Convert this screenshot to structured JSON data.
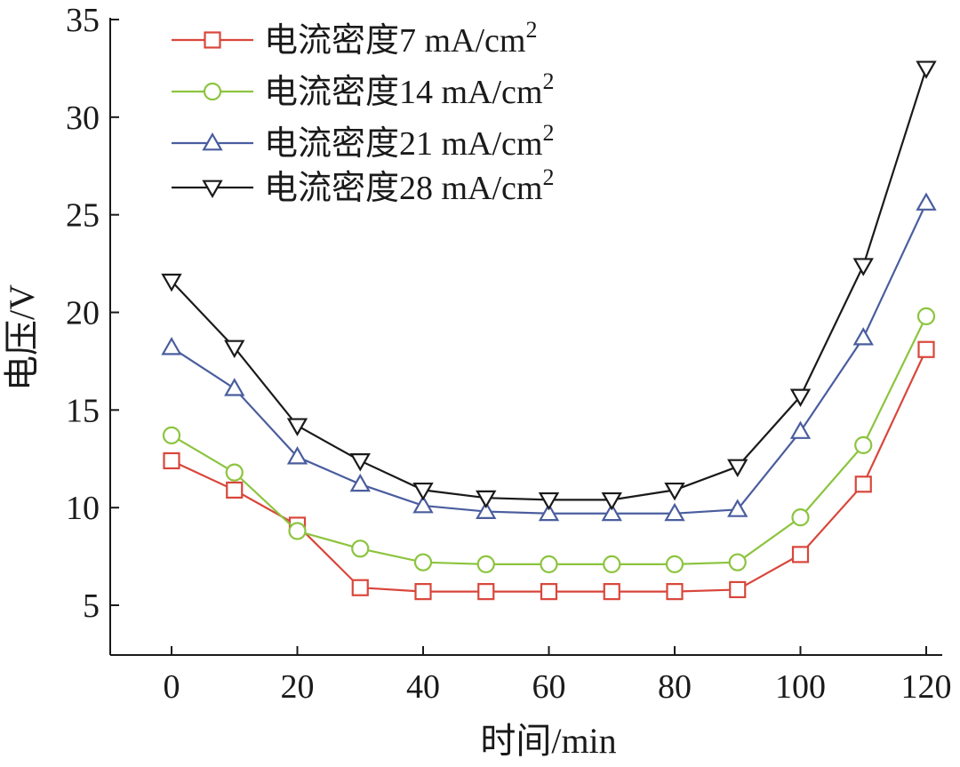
{
  "chart_data": {
    "type": "line",
    "xlabel": "时间/min",
    "ylabel": "电压/V",
    "xlim": [
      -10,
      125
    ],
    "ylim": [
      2.5,
      35
    ],
    "xticks": [
      0,
      20,
      40,
      60,
      80,
      100,
      120
    ],
    "yticks": [
      5,
      10,
      15,
      20,
      25,
      30,
      35
    ],
    "x": [
      0,
      10,
      20,
      30,
      40,
      50,
      60,
      70,
      80,
      90,
      100,
      110,
      120
    ],
    "legend_position": "top-left",
    "grid": false,
    "series": [
      {
        "name": "电流密度7 mA/cm",
        "name_sup": "2",
        "color": "#d9463b",
        "marker": "square",
        "values": [
          12.4,
          10.9,
          9.1,
          5.9,
          5.7,
          5.7,
          5.7,
          5.7,
          5.7,
          5.8,
          7.6,
          11.2,
          18.1
        ]
      },
      {
        "name": "电流密度14 mA/cm",
        "name_sup": "2",
        "color": "#8cc43f",
        "marker": "circle",
        "values": [
          13.7,
          11.8,
          8.8,
          7.9,
          7.2,
          7.1,
          7.1,
          7.1,
          7.1,
          7.2,
          9.5,
          13.2,
          19.8
        ]
      },
      {
        "name": "电流密度21 mA/cm",
        "name_sup": "2",
        "color": "#4a5d9e",
        "marker": "triangle-up",
        "values": [
          18.2,
          16.1,
          12.6,
          11.2,
          10.1,
          9.8,
          9.7,
          9.7,
          9.7,
          9.9,
          13.9,
          18.7,
          25.6
        ]
      },
      {
        "name": "电流密度28 mA/cm",
        "name_sup": "2",
        "color": "#1a1a1a",
        "marker": "triangle-down",
        "values": [
          21.6,
          18.2,
          14.2,
          12.4,
          10.9,
          10.5,
          10.4,
          10.4,
          10.9,
          12.1,
          15.7,
          22.4,
          32.5
        ]
      }
    ]
  }
}
